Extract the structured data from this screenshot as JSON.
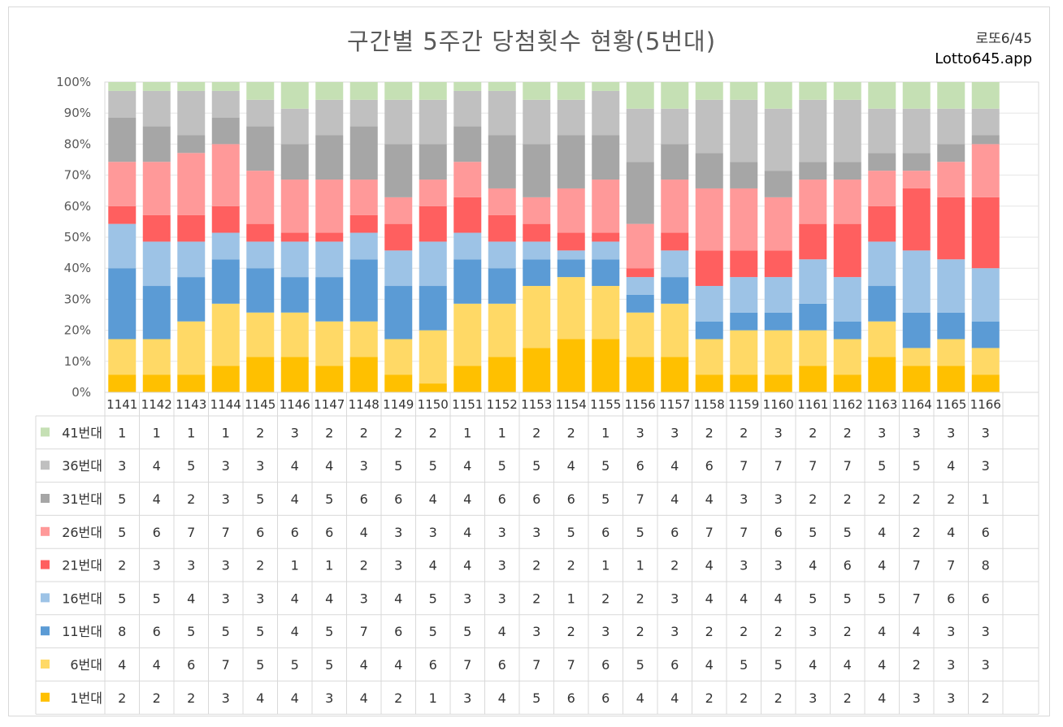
{
  "title": "구간별 5주간 당첨횟수 현황(5번대)",
  "brand": {
    "sub": "로또6/45",
    "main": "Lotto645.app"
  },
  "chart_data": {
    "type": "bar",
    "stacked": "percent",
    "title": "구간별 5주간 당첨횟수 현황(5번대)",
    "yticks": [
      "0%",
      "10%",
      "20%",
      "30%",
      "40%",
      "50%",
      "60%",
      "70%",
      "80%",
      "90%",
      "100%"
    ],
    "ylim": [
      0,
      1
    ],
    "grid": true,
    "legend": "data-table",
    "categories": [
      "1141",
      "1142",
      "1143",
      "1144",
      "1145",
      "1146",
      "1147",
      "1148",
      "1149",
      "1150",
      "1151",
      "1152",
      "1153",
      "1154",
      "1155",
      "1156",
      "1157",
      "1158",
      "1159",
      "1160",
      "1161",
      "1162",
      "1163",
      "1164",
      "1165",
      "1166"
    ],
    "series": [
      {
        "name": "1번대",
        "color": "#ffc000",
        "values": [
          2,
          2,
          2,
          3,
          4,
          4,
          3,
          4,
          2,
          1,
          3,
          4,
          5,
          6,
          6,
          4,
          4,
          2,
          2,
          2,
          3,
          2,
          4,
          3,
          3,
          2
        ]
      },
      {
        "name": "6번대",
        "color": "#ffd966",
        "values": [
          4,
          4,
          6,
          7,
          5,
          5,
          5,
          4,
          4,
          6,
          7,
          6,
          7,
          7,
          6,
          5,
          6,
          4,
          5,
          5,
          4,
          4,
          4,
          2,
          3,
          3
        ]
      },
      {
        "name": "11번대",
        "color": "#5b9bd5",
        "values": [
          8,
          6,
          5,
          5,
          5,
          4,
          5,
          7,
          6,
          5,
          5,
          4,
          3,
          2,
          3,
          2,
          3,
          2,
          2,
          2,
          3,
          2,
          4,
          4,
          3,
          3
        ]
      },
      {
        "name": "16번대",
        "color": "#9dc3e6",
        "values": [
          5,
          5,
          4,
          3,
          3,
          4,
          4,
          3,
          4,
          5,
          3,
          3,
          2,
          1,
          2,
          2,
          3,
          4,
          4,
          4,
          5,
          5,
          5,
          7,
          6,
          6
        ]
      },
      {
        "name": "21번대",
        "color": "#ff5f5f",
        "values": [
          2,
          3,
          3,
          3,
          2,
          1,
          1,
          2,
          3,
          4,
          4,
          3,
          2,
          2,
          1,
          1,
          2,
          4,
          3,
          3,
          4,
          6,
          4,
          7,
          7,
          8
        ]
      },
      {
        "name": "26번대",
        "color": "#ff9999",
        "values": [
          5,
          6,
          7,
          7,
          6,
          6,
          6,
          4,
          3,
          3,
          4,
          3,
          3,
          5,
          6,
          5,
          6,
          7,
          7,
          6,
          5,
          5,
          4,
          2,
          4,
          6
        ]
      },
      {
        "name": "31번대",
        "color": "#a6a6a6",
        "values": [
          5,
          4,
          2,
          3,
          5,
          4,
          5,
          6,
          6,
          4,
          4,
          6,
          6,
          6,
          5,
          7,
          4,
          4,
          3,
          3,
          2,
          2,
          2,
          2,
          2,
          1
        ]
      },
      {
        "name": "36번대",
        "color": "#c0c0c0",
        "values": [
          3,
          4,
          5,
          3,
          3,
          4,
          4,
          3,
          5,
          5,
          4,
          5,
          5,
          4,
          5,
          6,
          4,
          6,
          7,
          7,
          7,
          7,
          5,
          5,
          4,
          3
        ]
      },
      {
        "name": "41번대",
        "color": "#c5e0b4",
        "values": [
          1,
          1,
          1,
          1,
          2,
          3,
          2,
          2,
          2,
          2,
          1,
          1,
          2,
          2,
          1,
          3,
          3,
          2,
          2,
          3,
          2,
          2,
          3,
          3,
          3,
          3
        ]
      }
    ]
  }
}
